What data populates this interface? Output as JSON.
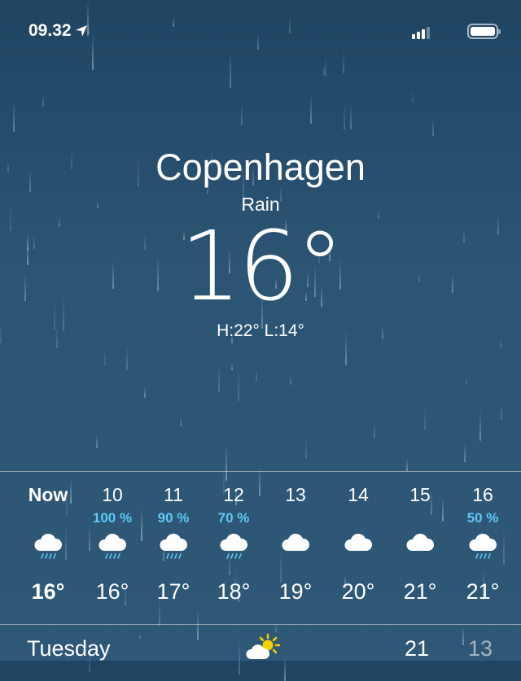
{
  "status_bar": {
    "time": "09.32",
    "location_icon": "location-arrow-icon",
    "signal_icon": "signal-icon",
    "battery_icon": "battery-icon"
  },
  "location": {
    "city": "Copenhagen",
    "condition": "Rain",
    "temperature": "16°",
    "high_low": "H:22°  L:14°"
  },
  "colors": {
    "background": "#2c5473",
    "precip": "#5ec9f5",
    "sun": "#f5d000"
  },
  "hourly": [
    {
      "hour": "Now",
      "precip": "",
      "icon": "cloud-rain-icon",
      "temp": "16°"
    },
    {
      "hour": "10",
      "precip": "100 %",
      "icon": "cloud-rain-icon",
      "temp": "16°"
    },
    {
      "hour": "11",
      "precip": "90 %",
      "icon": "cloud-rain-icon",
      "temp": "17°"
    },
    {
      "hour": "12",
      "precip": "70 %",
      "icon": "cloud-rain-icon",
      "temp": "18°"
    },
    {
      "hour": "13",
      "precip": "",
      "icon": "cloud-icon",
      "temp": "19°"
    },
    {
      "hour": "14",
      "precip": "",
      "icon": "cloud-icon",
      "temp": "20°"
    },
    {
      "hour": "15",
      "precip": "",
      "icon": "cloud-icon",
      "temp": "21°"
    },
    {
      "hour": "16",
      "precip": "50 %",
      "icon": "cloud-rain-icon",
      "temp": "21°"
    }
  ],
  "daily": [
    {
      "day": "Tuesday",
      "icon": "partly-sunny-icon",
      "high": "21",
      "low": "13"
    }
  ]
}
